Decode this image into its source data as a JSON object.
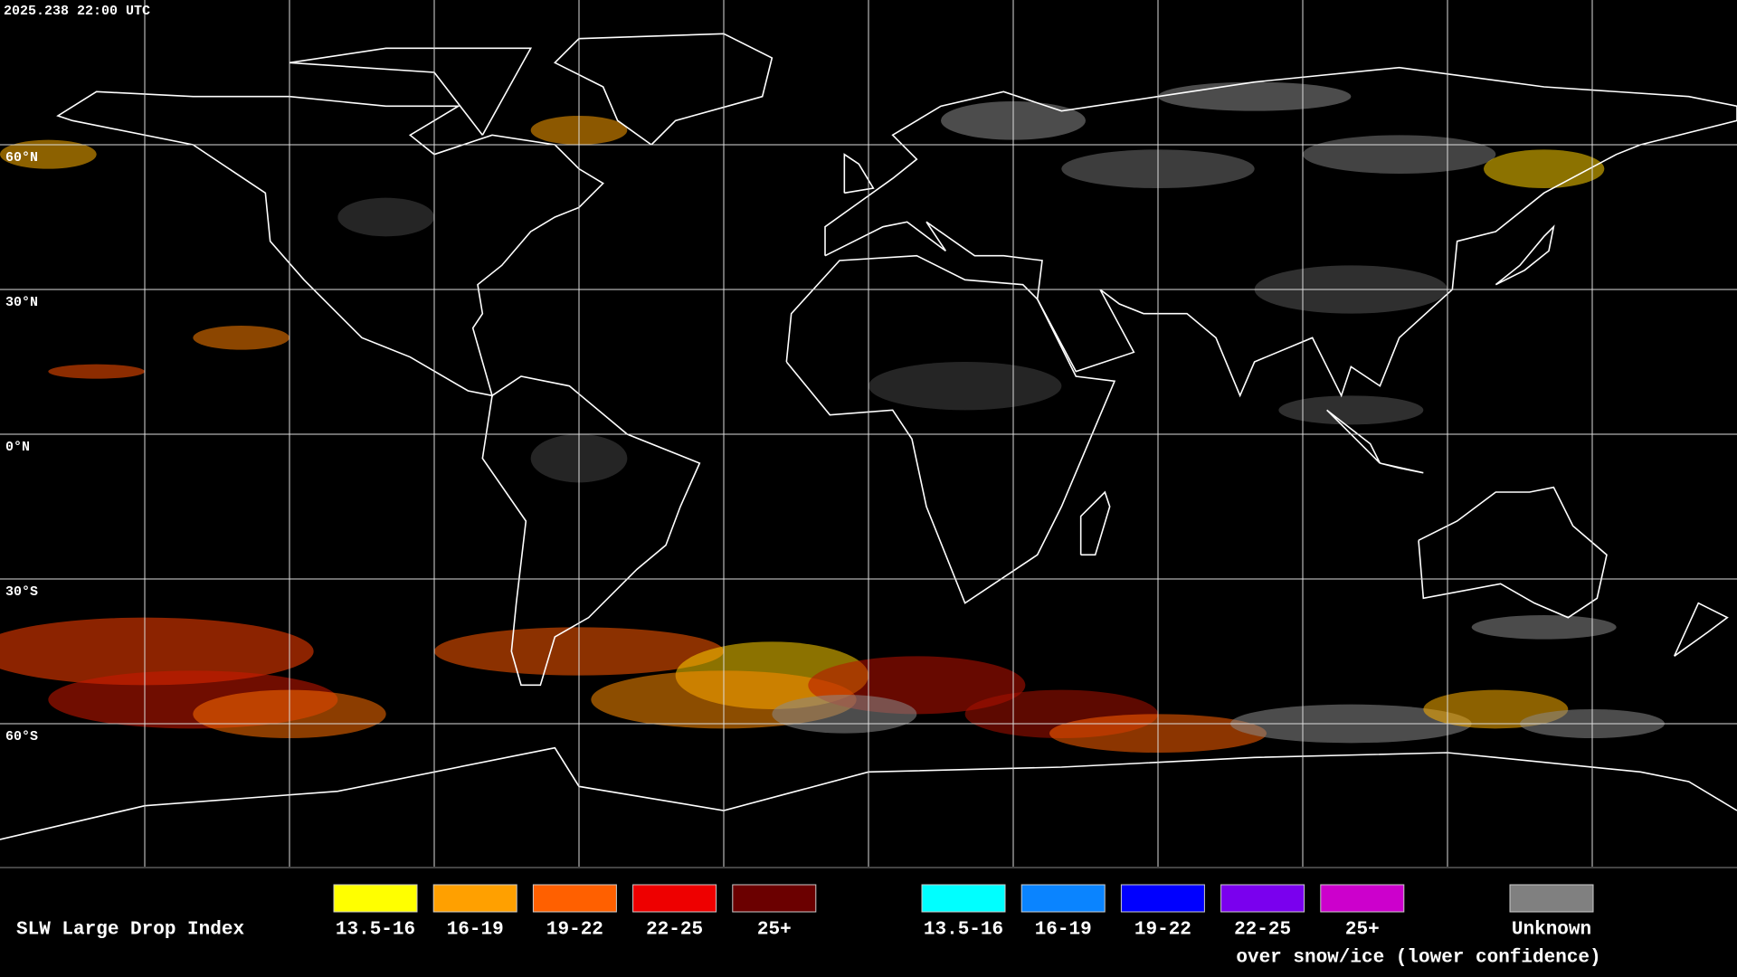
{
  "header": {
    "timestamp": "2025.238 22:00 UTC"
  },
  "map": {
    "grid_labels": [
      {
        "lat": 60,
        "label": "60°N"
      },
      {
        "lat": 30,
        "label": "30°N"
      },
      {
        "lat": 0,
        "label": "0°N"
      },
      {
        "lat": -30,
        "label": "30°S"
      },
      {
        "lat": -60,
        "label": "60°S"
      }
    ]
  },
  "legend": {
    "title": "SLW Large Drop Index",
    "items": [
      {
        "label": "13.5-16",
        "color": "#ffff00"
      },
      {
        "label": "16-19",
        "color": "#ffa000"
      },
      {
        "label": "19-22",
        "color": "#ff6000"
      },
      {
        "label": "22-25",
        "color": "#ee0000"
      },
      {
        "label": "25+",
        "color": "#6b0000"
      }
    ],
    "snow_items": [
      {
        "label": "13.5-16",
        "color": "#00ffff"
      },
      {
        "label": "16-19",
        "color": "#0a84ff"
      },
      {
        "label": "19-22",
        "color": "#0000ff"
      },
      {
        "label": "22-25",
        "color": "#7a00ee"
      },
      {
        "label": "25+",
        "color": "#cc00cc"
      }
    ],
    "snow_caption": "over snow/ice (lower confidence)",
    "unknown": {
      "label": "Unknown",
      "color": "#808080"
    }
  }
}
